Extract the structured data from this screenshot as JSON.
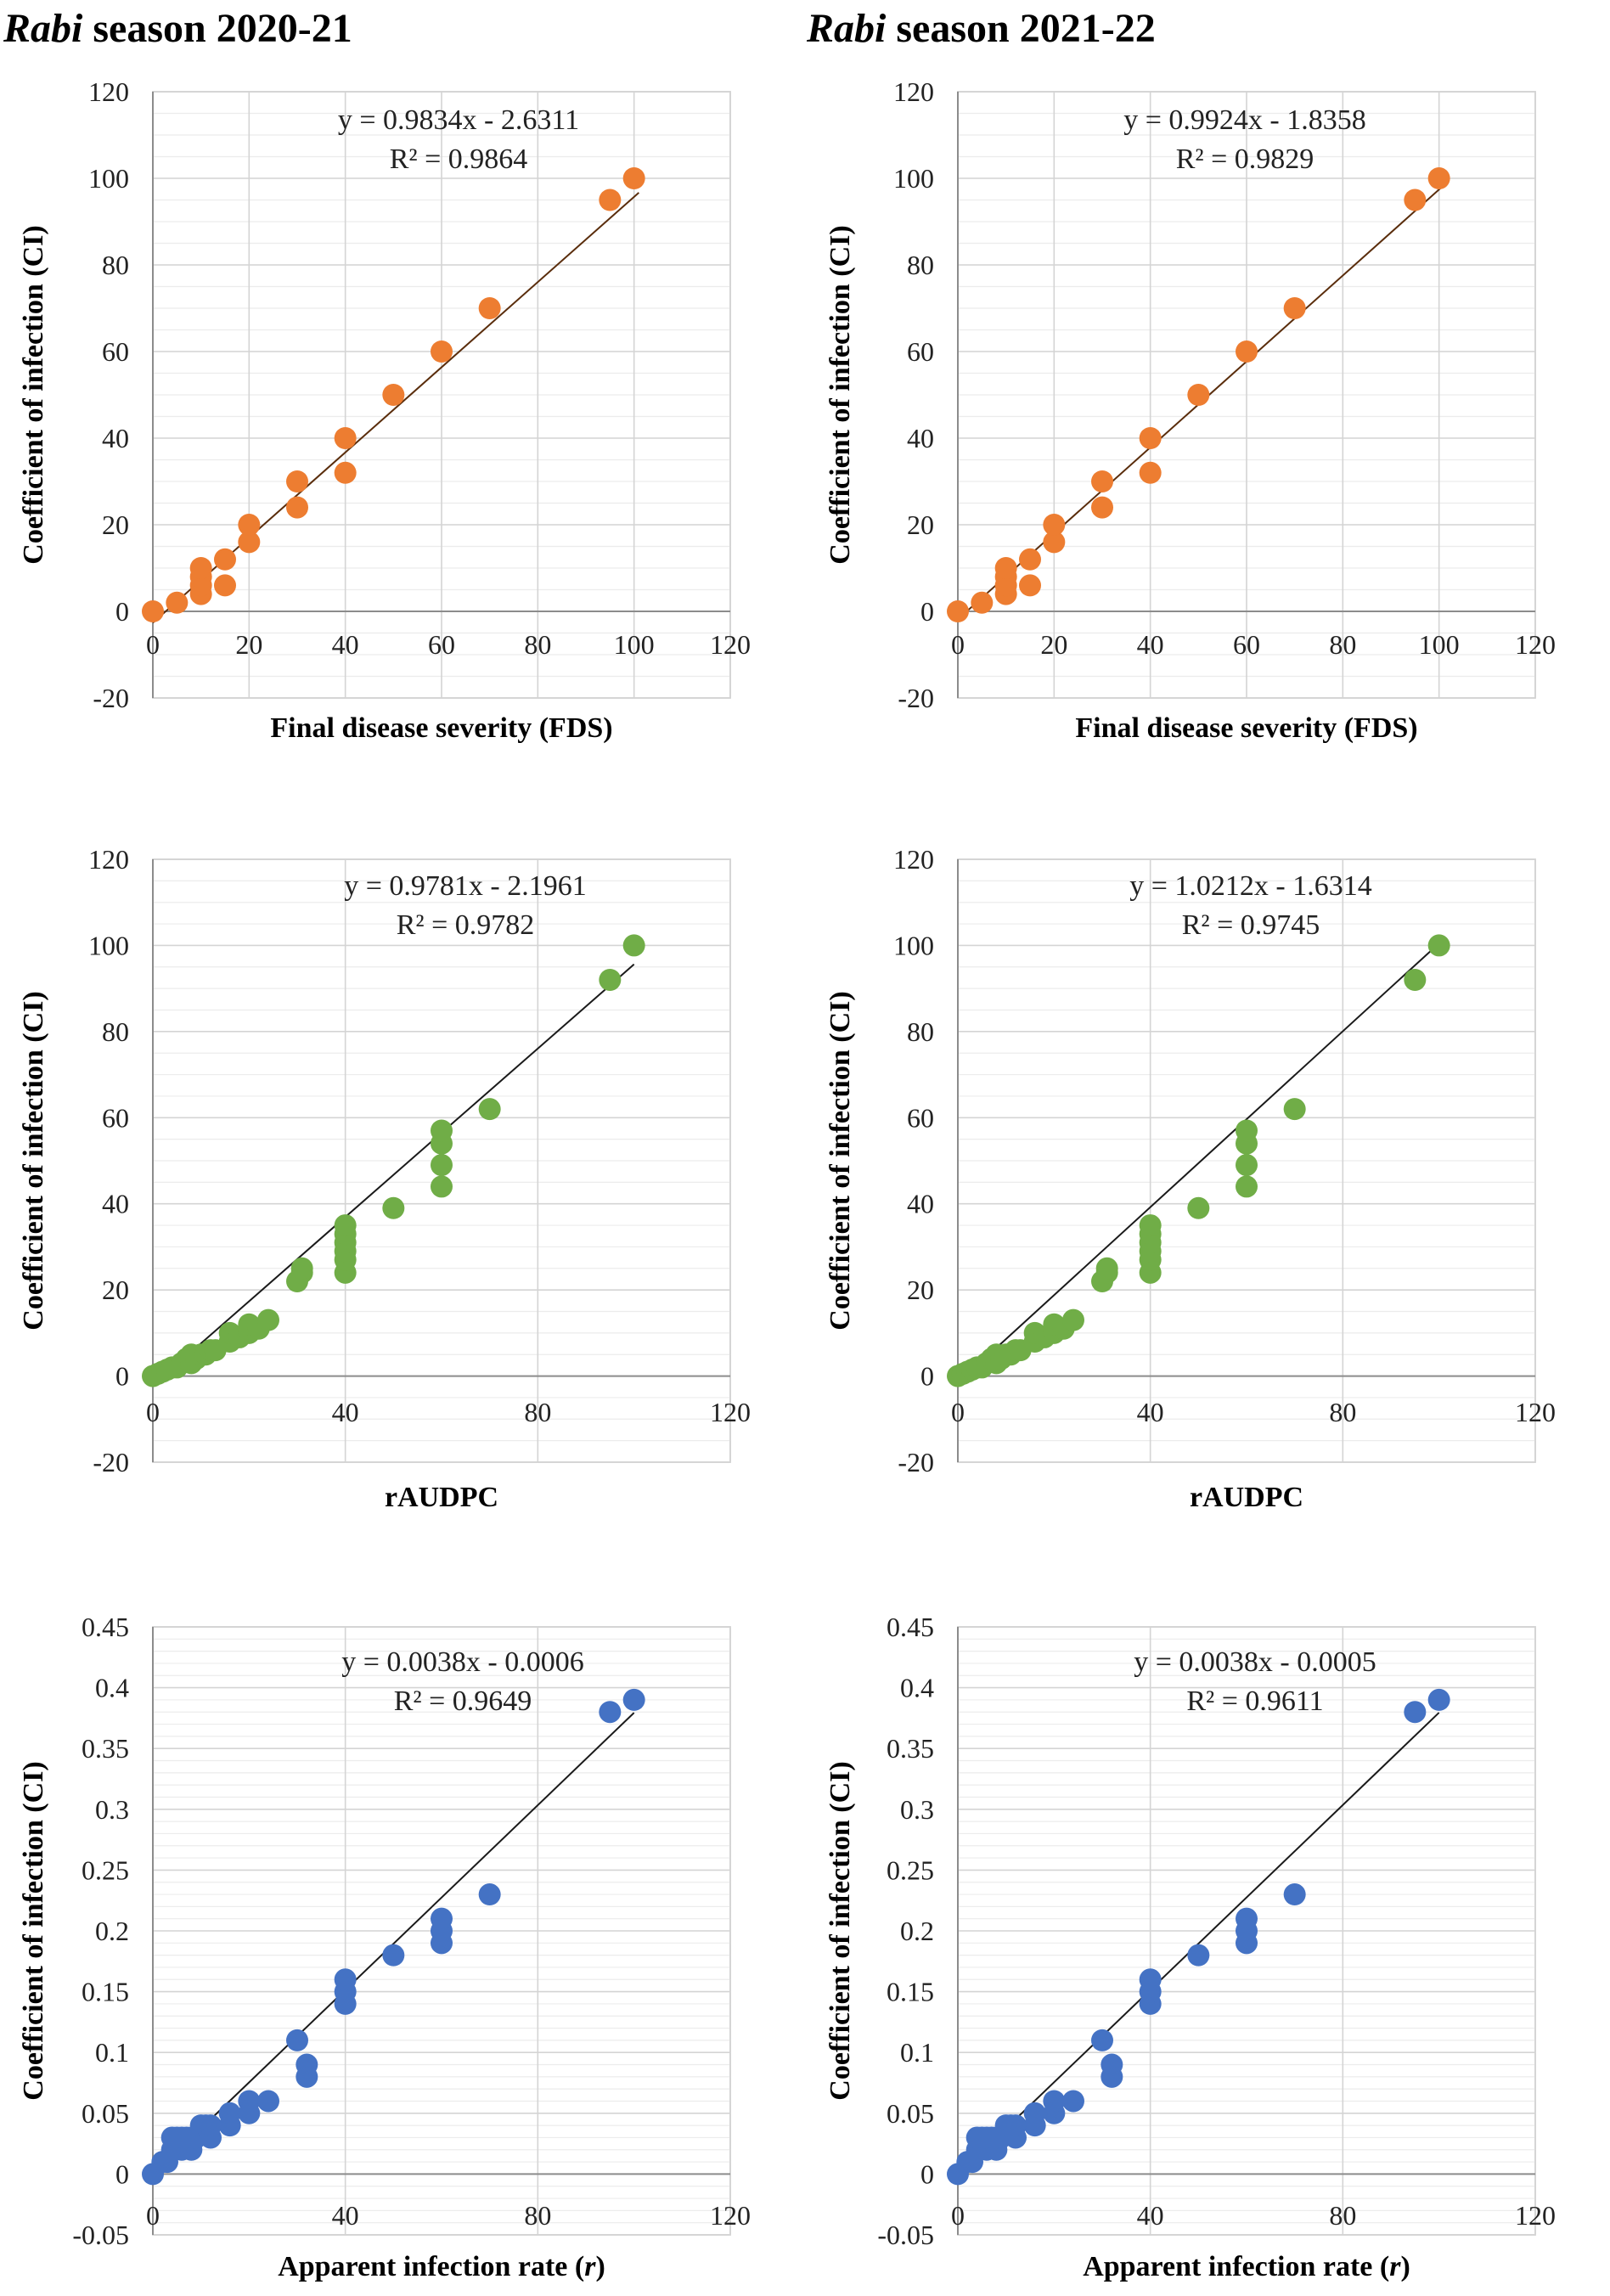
{
  "titles": [
    {
      "italic": "Rabi",
      "rest": " season 2020-21"
    },
    {
      "italic": "Rabi",
      "rest": " season 2021-22"
    }
  ],
  "colors": {
    "orange": "#ED7D31",
    "green": "#70AD47",
    "blue": "#4472C4",
    "grid": "#d9d9d9",
    "trend": "#1a1a1a"
  },
  "chart_data": [
    {
      "id": "fds-2020",
      "type": "scatter",
      "season": "2020-21",
      "xlabel": "Final disease severity (FDS)",
      "ylabel": "Coefficient of infection (CI)",
      "xlim": [
        0,
        120
      ],
      "ylim": [
        -20,
        120
      ],
      "xticks": [
        "0",
        "20",
        "40",
        "60",
        "80",
        "100",
        "120"
      ],
      "yticks": [
        "-20",
        "0",
        "20",
        "40",
        "60",
        "80",
        "100",
        "120"
      ],
      "equation": "y = 0.9834x - 2.6311",
      "r2": "R² = 0.9864",
      "trend": {
        "slope": 0.9834,
        "intercept": -2.6311,
        "x_range": [
          0,
          101
        ]
      },
      "color": "orange",
      "points": [
        [
          0,
          0
        ],
        [
          5,
          2
        ],
        [
          10,
          4
        ],
        [
          10,
          6
        ],
        [
          10,
          8
        ],
        [
          10,
          10
        ],
        [
          15,
          6
        ],
        [
          15,
          12
        ],
        [
          20,
          16
        ],
        [
          20,
          20
        ],
        [
          30,
          24
        ],
        [
          30,
          30
        ],
        [
          40,
          32
        ],
        [
          40,
          40
        ],
        [
          50,
          50
        ],
        [
          60,
          60
        ],
        [
          70,
          70
        ],
        [
          95,
          95
        ],
        [
          100,
          100
        ]
      ]
    },
    {
      "id": "fds-2021",
      "type": "scatter",
      "season": "2021-22",
      "xlabel": "Final disease severity (FDS)",
      "ylabel": "Coefficient of infection (CI)",
      "xlim": [
        0,
        120
      ],
      "ylim": [
        -20,
        120
      ],
      "xticks": [
        "0",
        "20",
        "40",
        "60",
        "80",
        "100",
        "120"
      ],
      "yticks": [
        "-20",
        "0",
        "20",
        "40",
        "60",
        "80",
        "100",
        "120"
      ],
      "equation": "y = 0.9924x - 1.8358",
      "r2": "R² = 0.9829",
      "trend": {
        "slope": 0.9924,
        "intercept": -1.8358,
        "x_range": [
          0,
          101
        ]
      },
      "color": "orange",
      "points": [
        [
          0,
          0
        ],
        [
          5,
          2
        ],
        [
          10,
          4
        ],
        [
          10,
          6
        ],
        [
          10,
          8
        ],
        [
          10,
          10
        ],
        [
          15,
          6
        ],
        [
          15,
          12
        ],
        [
          20,
          16
        ],
        [
          20,
          20
        ],
        [
          30,
          24
        ],
        [
          30,
          30
        ],
        [
          40,
          32
        ],
        [
          40,
          40
        ],
        [
          50,
          50
        ],
        [
          60,
          60
        ],
        [
          70,
          70
        ],
        [
          95,
          95
        ],
        [
          100,
          100
        ]
      ]
    },
    {
      "id": "raudpc-2020",
      "type": "scatter",
      "season": "2020-21",
      "xlabel": "rAUDPC",
      "ylabel": "Coefficient of infection (CI)",
      "xlim": [
        0,
        120
      ],
      "ylim": [
        -20,
        120
      ],
      "xticks": [
        "0",
        "40",
        "80",
        "120"
      ],
      "yticks": [
        "-20",
        "0",
        "20",
        "40",
        "60",
        "80",
        "100",
        "120"
      ],
      "equation": "y = 0.9781x - 2.1961",
      "r2": "R² = 0.9782",
      "trend": {
        "slope": 0.9781,
        "intercept": -2.1961,
        "x_range": [
          0,
          100
        ]
      },
      "color": "green",
      "points": [
        [
          0,
          0
        ],
        [
          1,
          0.5
        ],
        [
          2,
          1
        ],
        [
          3,
          1.5
        ],
        [
          4,
          2
        ],
        [
          5,
          2
        ],
        [
          6,
          3
        ],
        [
          7,
          4
        ],
        [
          8,
          3
        ],
        [
          8,
          5
        ],
        [
          9,
          4
        ],
        [
          10,
          5
        ],
        [
          11,
          5
        ],
        [
          12,
          6
        ],
        [
          13,
          6
        ],
        [
          16,
          8
        ],
        [
          16,
          10
        ],
        [
          18,
          9
        ],
        [
          20,
          10
        ],
        [
          20,
          12
        ],
        [
          22,
          11
        ],
        [
          24,
          13
        ],
        [
          30,
          22
        ],
        [
          31,
          24
        ],
        [
          31,
          25
        ],
        [
          40,
          24
        ],
        [
          40,
          27
        ],
        [
          40,
          29
        ],
        [
          40,
          31
        ],
        [
          40,
          33
        ],
        [
          40,
          35
        ],
        [
          50,
          39
        ],
        [
          60,
          44
        ],
        [
          60,
          49
        ],
        [
          60,
          54
        ],
        [
          60,
          57
        ],
        [
          70,
          62
        ],
        [
          95,
          92
        ],
        [
          100,
          100
        ]
      ]
    },
    {
      "id": "raudpc-2021",
      "type": "scatter",
      "season": "2021-22",
      "xlabel": "rAUDPC",
      "ylabel": "Coefficient of infection (CI)",
      "xlim": [
        0,
        120
      ],
      "ylim": [
        -20,
        120
      ],
      "xticks": [
        "0",
        "40",
        "80",
        "120"
      ],
      "yticks": [
        "-20",
        "0",
        "20",
        "40",
        "60",
        "80",
        "100",
        "120"
      ],
      "equation": "y = 1.0212x - 1.6314",
      "r2": "R² = 0.9745",
      "trend": {
        "slope": 1.0212,
        "intercept": -1.6314,
        "x_range": [
          0,
          100
        ]
      },
      "color": "green",
      "points": [
        [
          0,
          0
        ],
        [
          1,
          0.5
        ],
        [
          2,
          1
        ],
        [
          3,
          1.5
        ],
        [
          4,
          2
        ],
        [
          5,
          2
        ],
        [
          6,
          3
        ],
        [
          7,
          4
        ],
        [
          8,
          3
        ],
        [
          8,
          5
        ],
        [
          9,
          4
        ],
        [
          10,
          5
        ],
        [
          11,
          5
        ],
        [
          12,
          6
        ],
        [
          13,
          6
        ],
        [
          16,
          8
        ],
        [
          16,
          10
        ],
        [
          18,
          9
        ],
        [
          20,
          10
        ],
        [
          20,
          12
        ],
        [
          22,
          11
        ],
        [
          24,
          13
        ],
        [
          30,
          22
        ],
        [
          31,
          24
        ],
        [
          31,
          25
        ],
        [
          40,
          24
        ],
        [
          40,
          27
        ],
        [
          40,
          29
        ],
        [
          40,
          31
        ],
        [
          40,
          33
        ],
        [
          40,
          35
        ],
        [
          50,
          39
        ],
        [
          60,
          44
        ],
        [
          60,
          49
        ],
        [
          60,
          54
        ],
        [
          60,
          57
        ],
        [
          70,
          62
        ],
        [
          95,
          92
        ],
        [
          100,
          100
        ]
      ]
    },
    {
      "id": "rate-2020",
      "type": "scatter",
      "season": "2020-21",
      "xlabel": "Apparent infection rate (",
      "xlabel_italic": "r",
      "xlabel_end": ")",
      "ylabel": "Coefficient of infection (CI)",
      "xlim": [
        0,
        120
      ],
      "ylim": [
        -0.05,
        0.45
      ],
      "xticks": [
        "0",
        "40",
        "80",
        "120"
      ],
      "yticks": [
        "-0.05",
        "0",
        "0.05",
        "0.1",
        "0.15",
        "0.2",
        "0.25",
        "0.3",
        "0.35",
        "0.4",
        "0.45"
      ],
      "equation": "y = 0.0038x - 0.0006",
      "r2": "R² = 0.9649",
      "trend": {
        "slope": 0.0038,
        "intercept": -0.0006,
        "x_range": [
          0,
          100
        ]
      },
      "color": "blue",
      "points": [
        [
          0,
          0
        ],
        [
          2,
          0.01
        ],
        [
          3,
          0.01
        ],
        [
          4,
          0.02
        ],
        [
          4,
          0.03
        ],
        [
          5,
          0.03
        ],
        [
          6,
          0.02
        ],
        [
          6,
          0.03
        ],
        [
          7,
          0.03
        ],
        [
          8,
          0.02
        ],
        [
          8,
          0.03
        ],
        [
          9,
          0.03
        ],
        [
          10,
          0.04
        ],
        [
          11,
          0.04
        ],
        [
          12,
          0.03
        ],
        [
          12,
          0.04
        ],
        [
          16,
          0.04
        ],
        [
          16,
          0.05
        ],
        [
          20,
          0.05
        ],
        [
          20,
          0.06
        ],
        [
          24,
          0.06
        ],
        [
          30,
          0.11
        ],
        [
          32,
          0.08
        ],
        [
          32,
          0.09
        ],
        [
          40,
          0.14
        ],
        [
          40,
          0.15
        ],
        [
          40,
          0.16
        ],
        [
          50,
          0.18
        ],
        [
          60,
          0.19
        ],
        [
          60,
          0.2
        ],
        [
          60,
          0.21
        ],
        [
          70,
          0.23
        ],
        [
          95,
          0.38
        ],
        [
          100,
          0.39
        ]
      ]
    },
    {
      "id": "rate-2021",
      "type": "scatter",
      "season": "2021-22",
      "xlabel": "Apparent infection rate (",
      "xlabel_italic": "r",
      "xlabel_end": ")",
      "ylabel": "Coefficient of infection (CI)",
      "xlim": [
        0,
        120
      ],
      "ylim": [
        -0.05,
        0.45
      ],
      "xticks": [
        "0",
        "40",
        "80",
        "120"
      ],
      "yticks": [
        "-0.05",
        "0",
        "0.05",
        "0.1",
        "0.15",
        "0.2",
        "0.25",
        "0.3",
        "0.35",
        "0.4",
        "0.45"
      ],
      "equation": "y = 0.0038x - 0.0005",
      "r2": "R² = 0.9611",
      "trend": {
        "slope": 0.0038,
        "intercept": -0.0005,
        "x_range": [
          0,
          100
        ]
      },
      "color": "blue",
      "points": [
        [
          0,
          0
        ],
        [
          2,
          0.01
        ],
        [
          3,
          0.01
        ],
        [
          4,
          0.02
        ],
        [
          4,
          0.03
        ],
        [
          5,
          0.03
        ],
        [
          6,
          0.02
        ],
        [
          6,
          0.03
        ],
        [
          7,
          0.03
        ],
        [
          8,
          0.02
        ],
        [
          8,
          0.03
        ],
        [
          9,
          0.03
        ],
        [
          10,
          0.04
        ],
        [
          11,
          0.04
        ],
        [
          12,
          0.03
        ],
        [
          12,
          0.04
        ],
        [
          16,
          0.04
        ],
        [
          16,
          0.05
        ],
        [
          20,
          0.05
        ],
        [
          20,
          0.06
        ],
        [
          24,
          0.06
        ],
        [
          30,
          0.11
        ],
        [
          32,
          0.08
        ],
        [
          32,
          0.09
        ],
        [
          40,
          0.14
        ],
        [
          40,
          0.15
        ],
        [
          40,
          0.16
        ],
        [
          50,
          0.18
        ],
        [
          60,
          0.19
        ],
        [
          60,
          0.2
        ],
        [
          60,
          0.21
        ],
        [
          70,
          0.23
        ],
        [
          95,
          0.38
        ],
        [
          100,
          0.39
        ]
      ]
    }
  ]
}
